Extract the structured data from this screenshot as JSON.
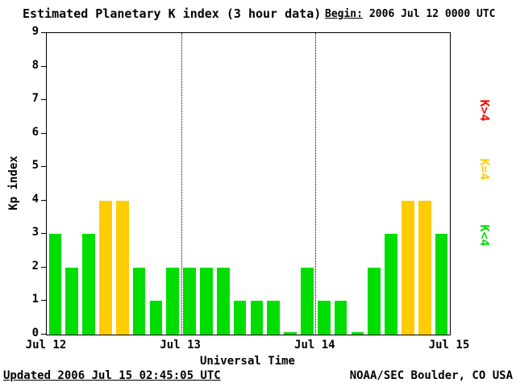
{
  "title": "Estimated Planetary K index (3 hour data)",
  "begin": {
    "label": "Begin:",
    "value": "2006 Jul 12 0000 UTC"
  },
  "footer": {
    "updated": "Updated 2006 Jul 15 02:45:05 UTC",
    "source": "NOAA/SEC Boulder, CO USA"
  },
  "legend": [
    {
      "label": "K>4",
      "color": "#ff0000"
    },
    {
      "label": "K=4",
      "color": "#ffcc00"
    },
    {
      "label": "K<4",
      "color": "#00dd00"
    }
  ],
  "chart_data": {
    "type": "bar",
    "title": "Estimated Planetary K index (3 hour data)",
    "xlabel": "Universal Time",
    "ylabel": "Kp index",
    "ylim": [
      0,
      9
    ],
    "yticks": [
      0,
      1,
      2,
      3,
      4,
      5,
      6,
      7,
      8,
      9
    ],
    "xticklabels": [
      "Jul 12",
      "Jul 13",
      "Jul 14",
      "Jul 15"
    ],
    "bars_per_day": 8,
    "values": [
      3,
      2,
      3,
      4,
      4,
      2,
      1,
      2,
      2,
      2,
      2,
      1,
      1,
      1,
      0,
      2,
      1,
      1,
      0,
      2,
      3,
      4,
      4,
      3
    ],
    "colors": {
      "low": "#00dd00",
      "mid": "#ffcc00",
      "high": "#ff0000"
    },
    "color_rule": "green K<4, yellow K=4, red K>4",
    "grid": "dotted vertical lines at day boundaries",
    "legend_position": "right, rotated"
  }
}
